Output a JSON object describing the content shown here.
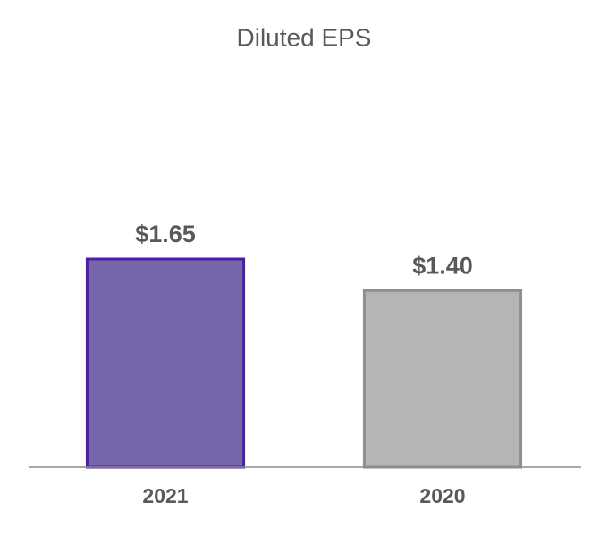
{
  "chart_data": {
    "type": "bar",
    "title": "Diluted EPS",
    "categories": [
      "2021",
      "2020"
    ],
    "values": [
      1.65,
      1.4
    ],
    "value_labels": [
      "$1.65",
      "$1.40"
    ],
    "colors": [
      "#7766ab",
      "#b5b5b5"
    ],
    "edge_colors": [
      "#4b1faa",
      "#8f8f8f"
    ],
    "ylim": [
      0,
      2.5
    ]
  }
}
